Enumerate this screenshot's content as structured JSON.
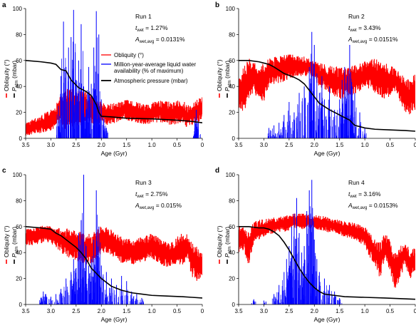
{
  "colors": {
    "obliquity": "#ff0000",
    "water": "#0000ff",
    "pressure": "#000000"
  },
  "legend": {
    "obliquity": "Obliquity (°)",
    "water_line1": "Million-year-average liquid water",
    "water_line2": "availability (% of maximum)",
    "pressure": "Atmospheric pressure (mbar)"
  },
  "chart_data": [
    {
      "panel": "a",
      "type": "line",
      "run": "Run 1",
      "twet": "1.27%",
      "awet": "0.0131%",
      "xlabel": "Age (Gyr)",
      "ylabel_obliquity": "Obliquity (°)",
      "ylabel_pressure": "mbar",
      "xlim": [
        3.5,
        0
      ],
      "ylim": [
        0,
        100
      ],
      "xticks": [
        "3.5",
        "3.0",
        "2.5",
        "2.0",
        "1.5",
        "1.0",
        "0.5",
        "0"
      ],
      "yticks": [
        "0",
        "20",
        "40",
        "60",
        "80",
        "100"
      ],
      "pressure": {
        "x": [
          3.5,
          3.2,
          3.0,
          2.9,
          2.8,
          2.7,
          2.6,
          2.45,
          2.3,
          2.2,
          2.1,
          2.05,
          2.0,
          1.8,
          1.5,
          1.0,
          0.5,
          0.2,
          0
        ],
        "y": [
          60,
          59,
          58,
          57,
          53,
          52,
          45,
          39,
          36,
          33,
          26,
          20,
          17,
          16.5,
          15.5,
          15,
          14,
          13,
          12
        ]
      },
      "obliquity_band": {
        "x": [
          3.5,
          3.2,
          3.0,
          2.9,
          2.85,
          2.8,
          2.7,
          2.6,
          2.5,
          2.4,
          2.3,
          2.2,
          2.1,
          2.0,
          1.9,
          1.7,
          1.5,
          1.3,
          1.1,
          1.0,
          0.8,
          0.6,
          0.4,
          0.3,
          0.2,
          0.1,
          0
        ],
        "lo": [
          2,
          4,
          6,
          8,
          12,
          10,
          6,
          8,
          10,
          8,
          10,
          12,
          10,
          12,
          10,
          12,
          14,
          12,
          10,
          12,
          12,
          10,
          12,
          8,
          10,
          12,
          14
        ],
        "hi": [
          12,
          18,
          22,
          26,
          30,
          34,
          38,
          40,
          38,
          36,
          36,
          34,
          30,
          28,
          26,
          28,
          30,
          28,
          26,
          28,
          30,
          28,
          30,
          26,
          28,
          30,
          32
        ]
      },
      "water_peaks": [
        [
          2.85,
          25
        ],
        [
          2.8,
          48
        ],
        [
          2.75,
          90
        ],
        [
          2.7,
          55
        ],
        [
          2.65,
          70
        ],
        [
          2.6,
          78
        ],
        [
          2.55,
          99
        ],
        [
          2.5,
          45
        ],
        [
          2.45,
          60
        ],
        [
          2.4,
          88
        ],
        [
          2.35,
          40
        ],
        [
          2.3,
          30
        ],
        [
          2.25,
          55
        ],
        [
          2.2,
          42
        ],
        [
          2.15,
          70
        ],
        [
          2.1,
          98
        ],
        [
          2.05,
          80
        ],
        [
          2.0,
          30
        ],
        [
          1.95,
          15
        ],
        [
          1.9,
          8
        ],
        [
          0.15,
          8
        ],
        [
          0.12,
          22
        ],
        [
          0.08,
          12
        ]
      ]
    },
    {
      "panel": "b",
      "type": "line",
      "run": "Run 2",
      "twet": "3.43%",
      "awet": "0.0151%",
      "xlabel": "Age (Gyr)",
      "ylabel_obliquity": "Obliquity (°)",
      "ylabel_pressure": "mbar",
      "xlim": [
        3.5,
        0
      ],
      "ylim": [
        0,
        100
      ],
      "xticks": [
        "3.5",
        "3.0",
        "2.5",
        "2.0",
        "1.5",
        "1.0",
        "0.5",
        "0"
      ],
      "yticks": [
        "0",
        "20",
        "40",
        "60",
        "80",
        "100"
      ],
      "pressure": {
        "x": [
          3.5,
          3.3,
          3.1,
          3.0,
          2.9,
          2.8,
          2.6,
          2.4,
          2.3,
          2.2,
          2.1,
          2.0,
          1.9,
          1.7,
          1.5,
          1.3,
          1.2,
          1.0,
          0.8,
          0.5,
          0.2,
          0
        ],
        "y": [
          60,
          60,
          59,
          58,
          57,
          55,
          50,
          47,
          45,
          42,
          37,
          32,
          27,
          22,
          18,
          14,
          10,
          8,
          7,
          6.5,
          6,
          5.5
        ]
      },
      "obliquity_band": {
        "x": [
          3.5,
          3.4,
          3.3,
          3.2,
          3.1,
          3.0,
          2.9,
          2.7,
          2.5,
          2.3,
          2.1,
          2.0,
          1.9,
          1.7,
          1.5,
          1.3,
          1.1,
          1.0,
          0.8,
          0.6,
          0.4,
          0.3,
          0.2,
          0.1,
          0
        ],
        "lo": [
          22,
          20,
          30,
          35,
          30,
          28,
          40,
          42,
          45,
          48,
          48,
          45,
          40,
          35,
          30,
          32,
          36,
          40,
          35,
          30,
          35,
          28,
          20,
          18,
          22
        ],
        "hi": [
          45,
          55,
          62,
          60,
          55,
          58,
          62,
          64,
          65,
          64,
          62,
          60,
          58,
          56,
          55,
          55,
          58,
          60,
          62,
          58,
          55,
          50,
          48,
          46,
          50
        ]
      },
      "water_peaks": [
        [
          2.9,
          8
        ],
        [
          2.8,
          10
        ],
        [
          2.7,
          12
        ],
        [
          2.6,
          18
        ],
        [
          2.5,
          28
        ],
        [
          2.4,
          20
        ],
        [
          2.3,
          35
        ],
        [
          2.2,
          40
        ],
        [
          2.1,
          55
        ],
        [
          2.05,
          82
        ],
        [
          2.0,
          72
        ],
        [
          1.95,
          50
        ],
        [
          1.9,
          35
        ],
        [
          1.85,
          48
        ],
        [
          1.8,
          30
        ],
        [
          1.7,
          40
        ],
        [
          1.6,
          22
        ],
        [
          1.5,
          30
        ],
        [
          1.45,
          45
        ],
        [
          1.4,
          55
        ],
        [
          1.35,
          48
        ],
        [
          1.3,
          72
        ],
        [
          1.25,
          40
        ],
        [
          1.2,
          35
        ],
        [
          1.1,
          20
        ],
        [
          1.0,
          8
        ]
      ]
    },
    {
      "panel": "c",
      "type": "line",
      "run": "Run 3",
      "twet": "2.75%",
      "awet": "0.015%",
      "xlabel": "Age (Gyr)",
      "ylabel_obliquity": "Obliquity (°)",
      "ylabel_pressure": "mbar",
      "xlim": [
        3.5,
        0
      ],
      "ylim": [
        0,
        100
      ],
      "xticks": [
        "3.5",
        "3.0",
        "2.5",
        "2.0",
        "1.5",
        "1.0",
        "0.5",
        "0"
      ],
      "yticks": [
        "0",
        "20",
        "40",
        "60",
        "80",
        "100"
      ],
      "pressure": {
        "x": [
          3.5,
          3.2,
          3.0,
          2.9,
          2.8,
          2.7,
          2.6,
          2.5,
          2.4,
          2.3,
          2.2,
          2.1,
          2.0,
          1.9,
          1.8,
          1.6,
          1.4,
          1.2,
          1.0,
          0.7,
          0.4,
          0.2,
          0
        ],
        "y": [
          60,
          59,
          58,
          55,
          53,
          50,
          47,
          44,
          40,
          35,
          28,
          24,
          20,
          17,
          14,
          11,
          9,
          8,
          7,
          6.5,
          6,
          5.5,
          5
        ]
      },
      "obliquity_band": {
        "x": [
          3.5,
          3.3,
          3.1,
          3.0,
          2.9,
          2.8,
          2.6,
          2.4,
          2.2,
          2.1,
          2.0,
          1.9,
          1.8,
          1.6,
          1.4,
          1.2,
          1.0,
          0.8,
          0.6,
          0.5,
          0.4,
          0.3,
          0.2,
          0.1,
          0
        ],
        "lo": [
          45,
          46,
          48,
          46,
          44,
          40,
          35,
          32,
          30,
          35,
          38,
          40,
          38,
          32,
          30,
          32,
          35,
          30,
          28,
          32,
          30,
          35,
          20,
          18,
          22
        ],
        "hi": [
          58,
          60,
          61,
          60,
          58,
          60,
          58,
          56,
          55,
          58,
          62,
          60,
          58,
          52,
          50,
          52,
          55,
          50,
          48,
          52,
          55,
          54,
          48,
          45,
          40
        ]
      },
      "water_peaks": [
        [
          3.2,
          5
        ],
        [
          3.15,
          10
        ],
        [
          3.1,
          8
        ],
        [
          3.0,
          6
        ],
        [
          2.9,
          8
        ],
        [
          2.8,
          12
        ],
        [
          2.7,
          20
        ],
        [
          2.6,
          25
        ],
        [
          2.55,
          35
        ],
        [
          2.5,
          28
        ],
        [
          2.45,
          55
        ],
        [
          2.4,
          65
        ],
        [
          2.35,
          100
        ],
        [
          2.3,
          45
        ],
        [
          2.25,
          30
        ],
        [
          2.2,
          35
        ],
        [
          2.15,
          50
        ],
        [
          2.1,
          88
        ],
        [
          2.05,
          60
        ],
        [
          2.0,
          30
        ],
        [
          1.9,
          25
        ],
        [
          1.8,
          20
        ],
        [
          1.7,
          15
        ],
        [
          1.6,
          22
        ],
        [
          1.5,
          18
        ],
        [
          1.4,
          10
        ],
        [
          1.3,
          8
        ],
        [
          1.2,
          5
        ]
      ]
    },
    {
      "panel": "d",
      "type": "line",
      "run": "Run 4",
      "twet": "3.16%",
      "awet": "0.0153%",
      "xlabel": "Age (Gyr)",
      "ylabel_obliquity": "Obliquity (°)",
      "ylabel_pressure": "mbar",
      "xlim": [
        3.5,
        0
      ],
      "ylim": [
        0,
        100
      ],
      "xticks": [
        "3.5",
        "3.0",
        "2.5",
        "2.0",
        "1.5",
        "1.0",
        "0.5",
        "0"
      ],
      "yticks": [
        "0",
        "20",
        "40",
        "60",
        "80",
        "100"
      ],
      "pressure": {
        "x": [
          3.5,
          3.3,
          3.1,
          3.0,
          2.9,
          2.8,
          2.7,
          2.6,
          2.5,
          2.4,
          2.3,
          2.2,
          2.1,
          2.0,
          1.9,
          1.8,
          1.6,
          1.4,
          1.0,
          0.6,
          0.3,
          0
        ],
        "y": [
          60,
          60,
          59,
          59,
          58,
          56,
          53,
          48,
          42,
          35,
          28,
          22,
          17,
          13,
          10,
          8,
          7,
          6,
          5.5,
          5,
          4.5,
          4
        ]
      },
      "obliquity_band": {
        "x": [
          3.5,
          3.4,
          3.3,
          3.2,
          3.0,
          2.8,
          2.6,
          2.4,
          2.2,
          2.0,
          1.8,
          1.6,
          1.4,
          1.2,
          1.0,
          0.9,
          0.8,
          0.7,
          0.6,
          0.5,
          0.4,
          0.3,
          0.2,
          0.1,
          0
        ],
        "lo": [
          40,
          42,
          30,
          48,
          52,
          55,
          56,
          58,
          58,
          58,
          56,
          55,
          52,
          50,
          45,
          35,
          30,
          20,
          35,
          25,
          10,
          20,
          30,
          18,
          25
        ],
        "hi": [
          60,
          62,
          55,
          64,
          66,
          67,
          68,
          70,
          70,
          69,
          68,
          66,
          64,
          63,
          60,
          55,
          50,
          48,
          55,
          50,
          40,
          45,
          48,
          42,
          44
        ]
      },
      "water_peaks": [
        [
          3.2,
          4
        ],
        [
          3.0,
          3
        ],
        [
          2.8,
          8
        ],
        [
          2.7,
          15
        ],
        [
          2.6,
          25
        ],
        [
          2.55,
          35
        ],
        [
          2.5,
          45
        ],
        [
          2.45,
          60
        ],
        [
          2.4,
          70
        ],
        [
          2.35,
          82
        ],
        [
          2.3,
          55
        ],
        [
          2.25,
          40
        ],
        [
          2.2,
          45
        ],
        [
          2.15,
          72
        ],
        [
          2.1,
          88
        ],
        [
          2.05,
          96
        ],
        [
          2.0,
          50
        ],
        [
          1.95,
          35
        ],
        [
          1.9,
          25
        ],
        [
          1.8,
          20
        ],
        [
          1.7,
          15
        ],
        [
          1.6,
          10
        ],
        [
          1.5,
          5
        ]
      ]
    }
  ]
}
